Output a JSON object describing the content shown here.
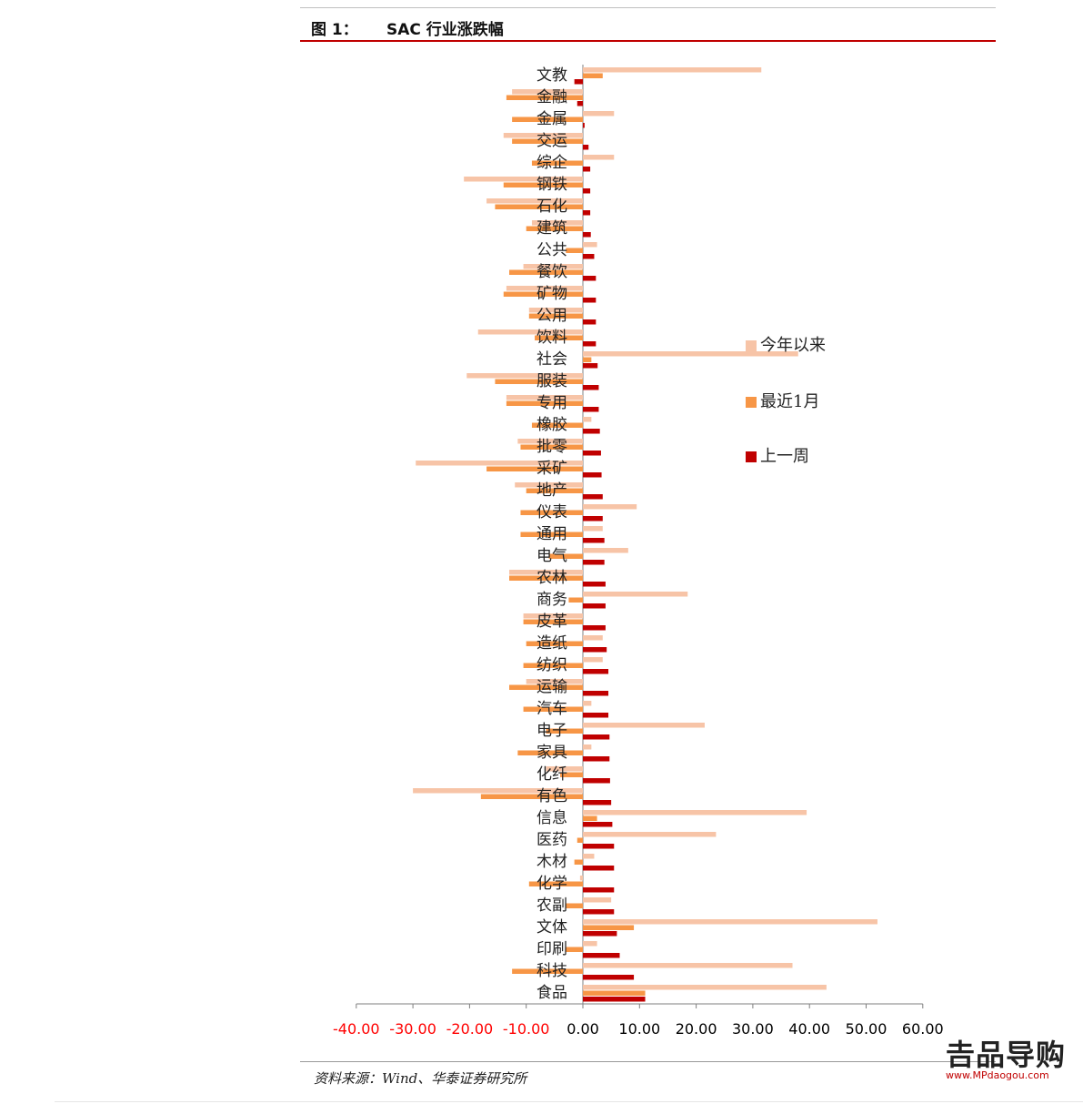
{
  "header": {
    "figure_label": "图 1：",
    "title": "SAC 行业涨跌幅"
  },
  "chart_data": {
    "type": "bar",
    "orientation": "horizontal",
    "title": "SAC 行业涨跌幅",
    "categories": [
      "文教",
      "金融",
      "金属",
      "交运",
      "综企",
      "钢铁",
      "石化",
      "建筑",
      "公共",
      "餐饮",
      "矿物",
      "公用",
      "饮料",
      "社会",
      "服装",
      "专用",
      "橡胶",
      "批零",
      "采矿",
      "地产",
      "仪表",
      "通用",
      "电气",
      "农林",
      "商务",
      "皮革",
      "造纸",
      "纺织",
      "运输",
      "汽车",
      "电子",
      "家具",
      "化纤",
      "有色",
      "信息",
      "医药",
      "木材",
      "化学",
      "农副",
      "文体",
      "印刷",
      "科技",
      "食品"
    ],
    "series": [
      {
        "name": "今年以来",
        "color": "#f7c4a7",
        "values": [
          31.5,
          -12.5,
          5.5,
          -14,
          5.5,
          -21,
          -17,
          -9,
          2.5,
          -10.5,
          -13.5,
          -9.5,
          -18.5,
          38,
          -20.5,
          -13.5,
          1.5,
          -11.5,
          -29.5,
          -12,
          9.5,
          3.5,
          8,
          -13,
          18.5,
          -10.5,
          3.5,
          3.5,
          -10,
          1.5,
          21.5,
          1.5,
          -6.5,
          -30,
          39.5,
          23.5,
          2,
          -0.5,
          5,
          52,
          2.5,
          37,
          43
        ]
      },
      {
        "name": "最近1月",
        "color": "#f79646",
        "values": [
          3.5,
          -13.5,
          -12.5,
          -12.5,
          -9,
          -14,
          -15.5,
          -10,
          -3,
          -13,
          -14,
          -9.5,
          -8.5,
          1.5,
          -15.5,
          -13.5,
          -9,
          -11,
          -17,
          -10,
          -11,
          -11,
          -6,
          -13,
          -2.5,
          -10.5,
          -10,
          -10.5,
          -13,
          -10.5,
          -6.5,
          -11.5,
          -4,
          -18,
          2.5,
          -1,
          -1.5,
          -9.5,
          -3,
          9,
          -3,
          -12.5,
          11
        ]
      },
      {
        "name": "上一周",
        "color": "#c00000",
        "values": [
          -1.5,
          -1,
          0.3,
          1,
          1.3,
          1.3,
          1.3,
          1.4,
          2,
          2.3,
          2.3,
          2.3,
          2.3,
          2.6,
          2.8,
          2.8,
          3,
          3.2,
          3.3,
          3.5,
          3.5,
          3.8,
          3.8,
          4,
          4,
          4,
          4.2,
          4.5,
          4.5,
          4.5,
          4.7,
          4.7,
          4.8,
          5,
          5.2,
          5.5,
          5.5,
          5.5,
          5.5,
          6,
          6.5,
          9,
          11
        ]
      }
    ],
    "xlim": [
      -40,
      60
    ],
    "xticks": [
      "-40.00",
      "-30.00",
      "-20.00",
      "-10.00",
      "0.00",
      "10.00",
      "20.00",
      "30.00",
      "40.00",
      "50.00",
      "60.00"
    ],
    "negative_tick_color": "#ff0000",
    "positive_tick_color": "#000000",
    "grid": false,
    "legend_position": "right"
  },
  "source": "资料来源：Wind、华泰证券研究所",
  "watermark": {
    "logo": "𠮷品导购",
    "url": "www.MPdaogou.com"
  }
}
